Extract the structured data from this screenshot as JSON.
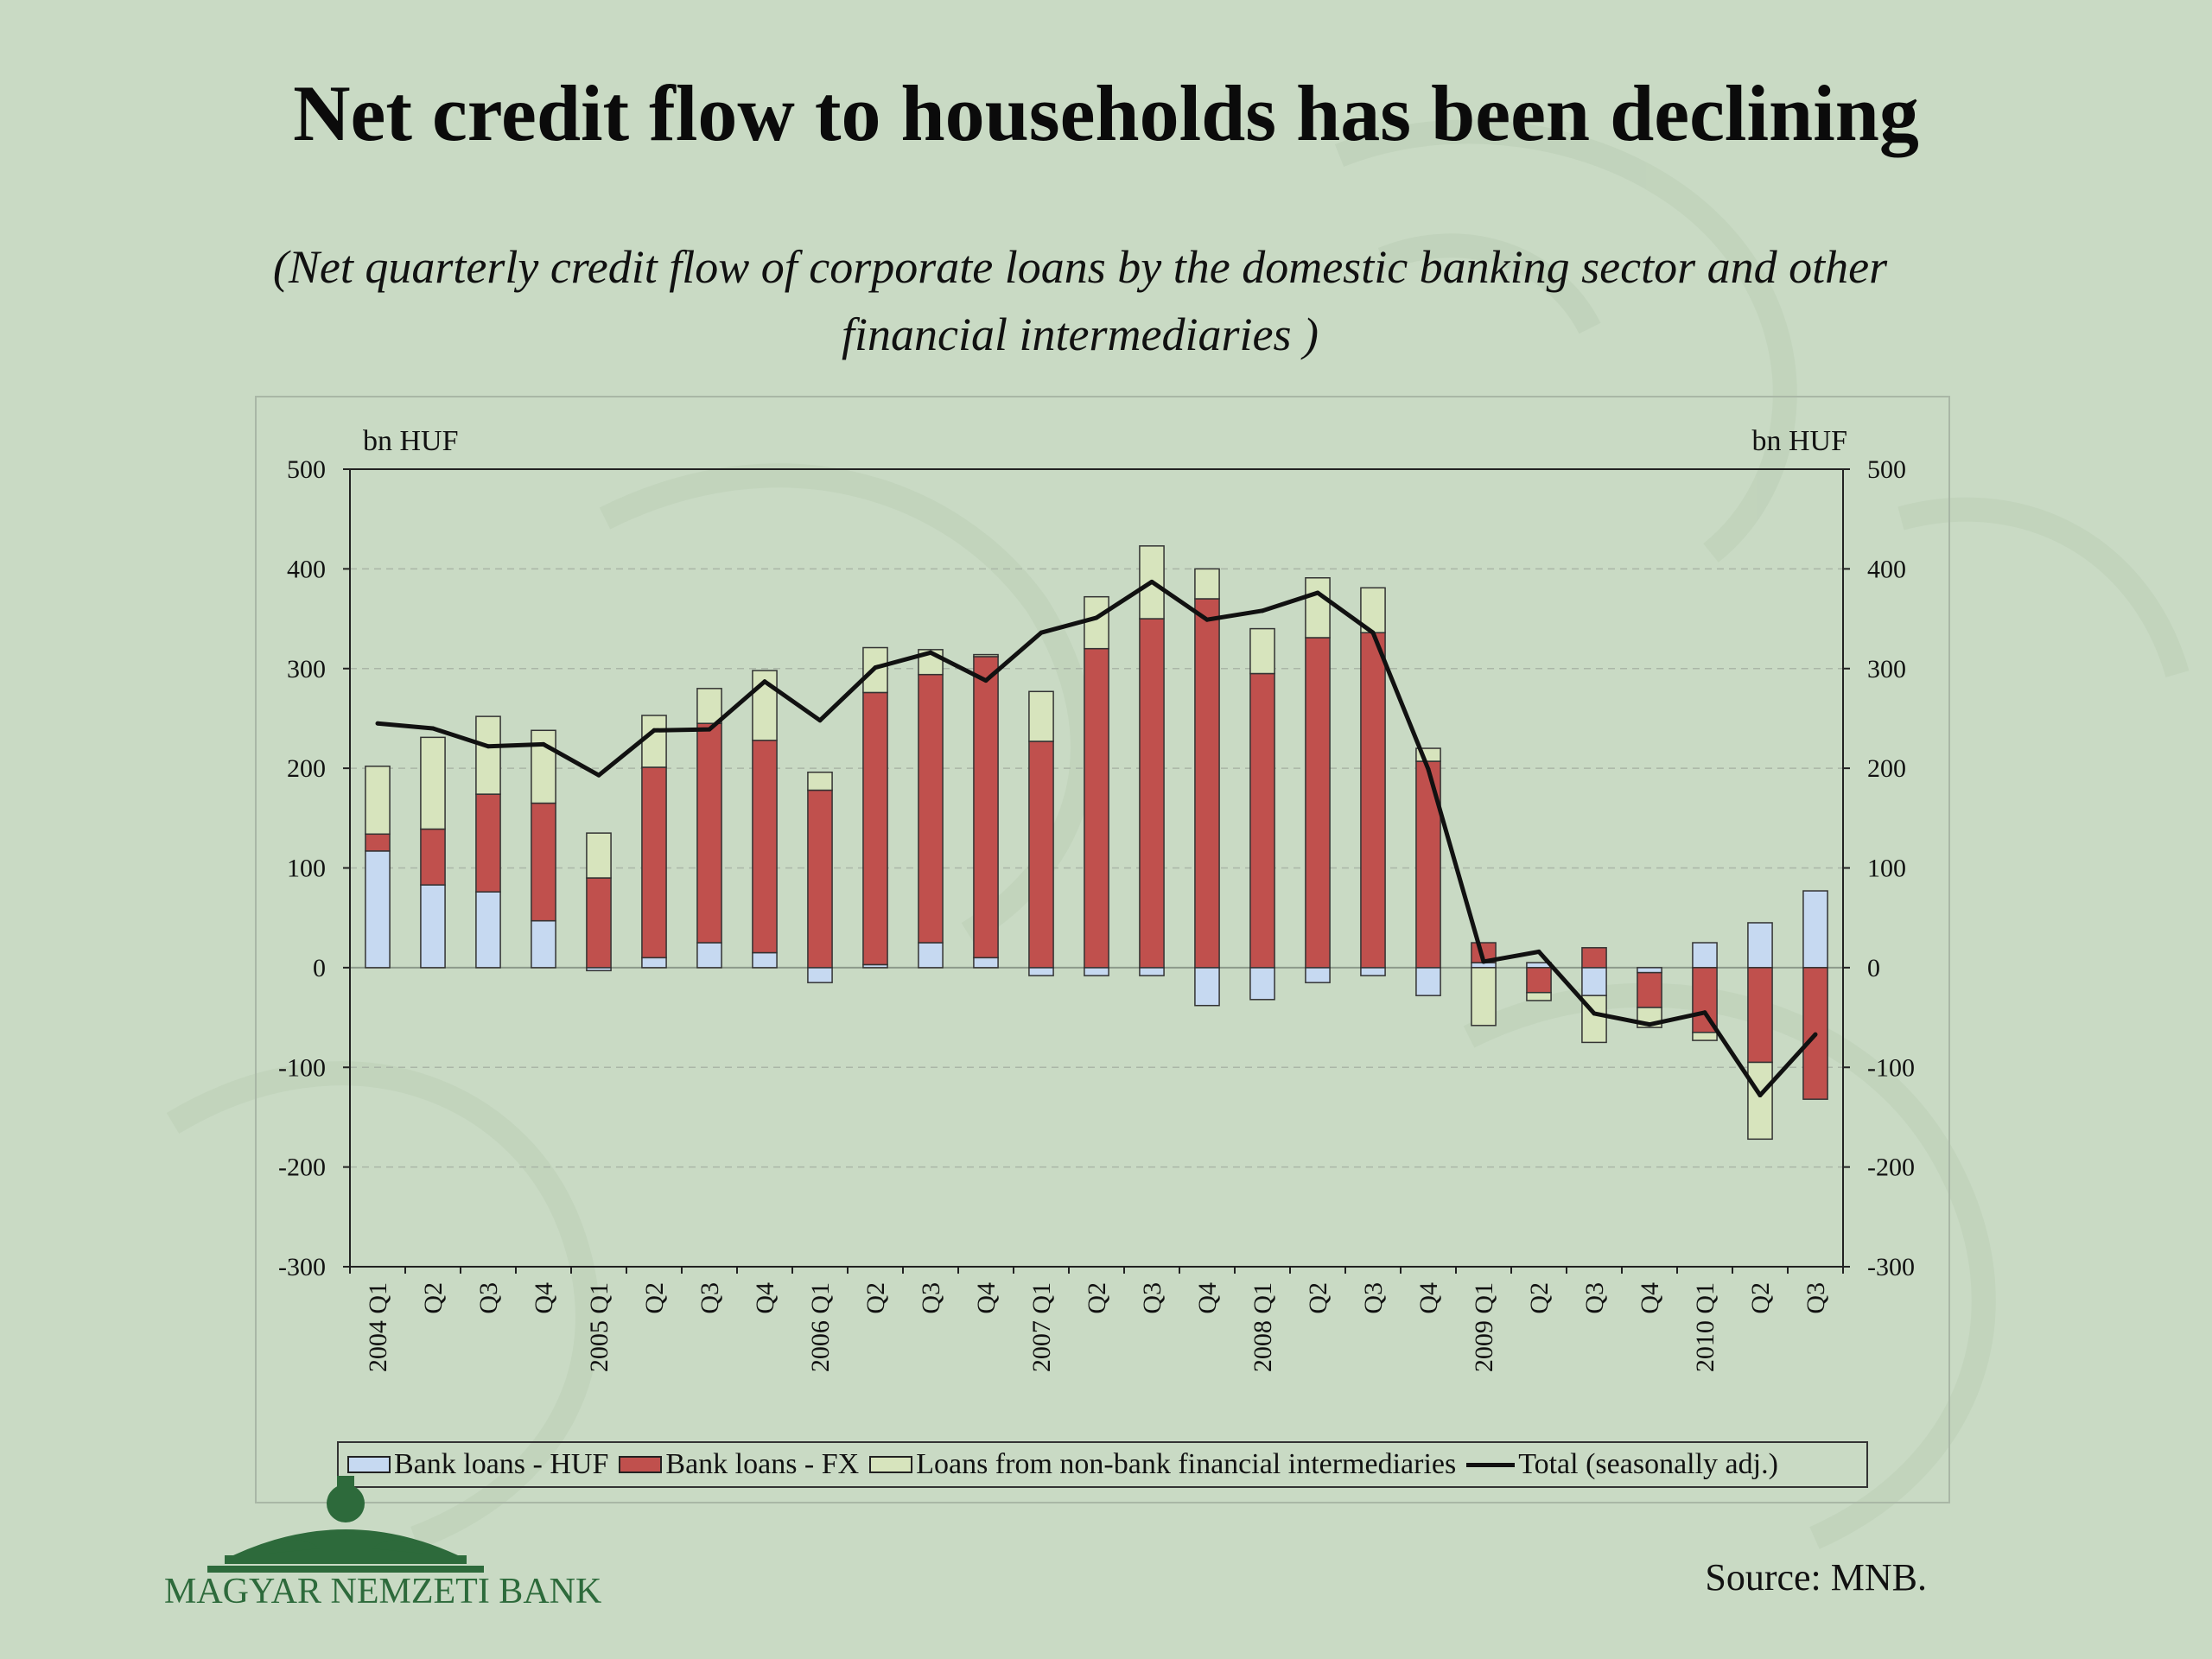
{
  "title": "Net credit flow to households has been declining",
  "subtitle": "(Net quarterly credit flow of  corporate loans by the domestic banking sector and other financial intermediaries )",
  "source": "Source: MNB.",
  "logo_text": "MAGYAR NEMZETI BANK",
  "colors": {
    "background": "#c9dac4",
    "huf": "#c6d9f1",
    "fx": "#c0504d",
    "nonbank": "#d7e4bd",
    "total": "#111111",
    "logo": "#2d6a3b"
  },
  "chart_data": {
    "type": "bar",
    "stacked": true,
    "left_unit": "bn HUF",
    "right_unit": "bn HUF",
    "ylim": [
      -300,
      500
    ],
    "y_ticks": [
      500,
      400,
      300,
      200,
      100,
      0,
      -100,
      -200,
      -300
    ],
    "y_tick_labels": [
      "500",
      "400",
      "300",
      "200",
      "100",
      "0",
      "-100",
      "-200",
      "-300"
    ],
    "grid": "dashed horizontal",
    "legend_position": "bottom",
    "categories": [
      "2004 Q1",
      "Q2",
      "Q3",
      "Q4",
      "2005 Q1",
      "Q2",
      "Q3",
      "Q4",
      "2006 Q1",
      "Q2",
      "Q3",
      "Q4",
      "2007 Q1",
      "Q2",
      "Q3",
      "Q4",
      "2008 Q1",
      "Q2",
      "Q3",
      "Q4",
      "2009 Q1",
      "Q2",
      "Q3",
      "Q4",
      "2010 Q1",
      "Q2",
      "Q3"
    ],
    "series": [
      {
        "name": "Bank loans - HUF",
        "kind": "bar",
        "values": [
          117,
          83,
          76,
          47,
          -3,
          10,
          25,
          15,
          -15,
          3,
          25,
          10,
          -8,
          -8,
          -8,
          -38,
          -32,
          -15,
          -8,
          -28,
          5,
          5,
          -28,
          -5,
          25,
          45,
          77
        ]
      },
      {
        "name": "Bank loans - FX",
        "kind": "bar",
        "values": [
          17,
          56,
          98,
          118,
          90,
          191,
          220,
          213,
          178,
          273,
          269,
          302,
          227,
          320,
          350,
          370,
          295,
          331,
          336,
          207,
          20,
          -25,
          20,
          -35,
          -65,
          -95,
          -132
        ]
      },
      {
        "name": "Loans from non-bank financial intermediaries",
        "kind": "bar",
        "values": [
          68,
          92,
          78,
          73,
          45,
          52,
          35,
          70,
          18,
          45,
          25,
          2,
          50,
          52,
          73,
          30,
          45,
          60,
          45,
          13,
          -58,
          -8,
          -47,
          -20,
          -8,
          -77,
          0
        ]
      },
      {
        "name": "Total (seasonally adj.)",
        "kind": "line",
        "values": [
          245,
          240,
          222,
          224,
          193,
          238,
          239,
          287,
          248,
          301,
          316,
          288,
          336,
          351,
          387,
          349,
          358,
          376,
          336,
          199,
          6,
          16,
          -46,
          -57,
          -45,
          -128,
          -67
        ]
      }
    ]
  }
}
